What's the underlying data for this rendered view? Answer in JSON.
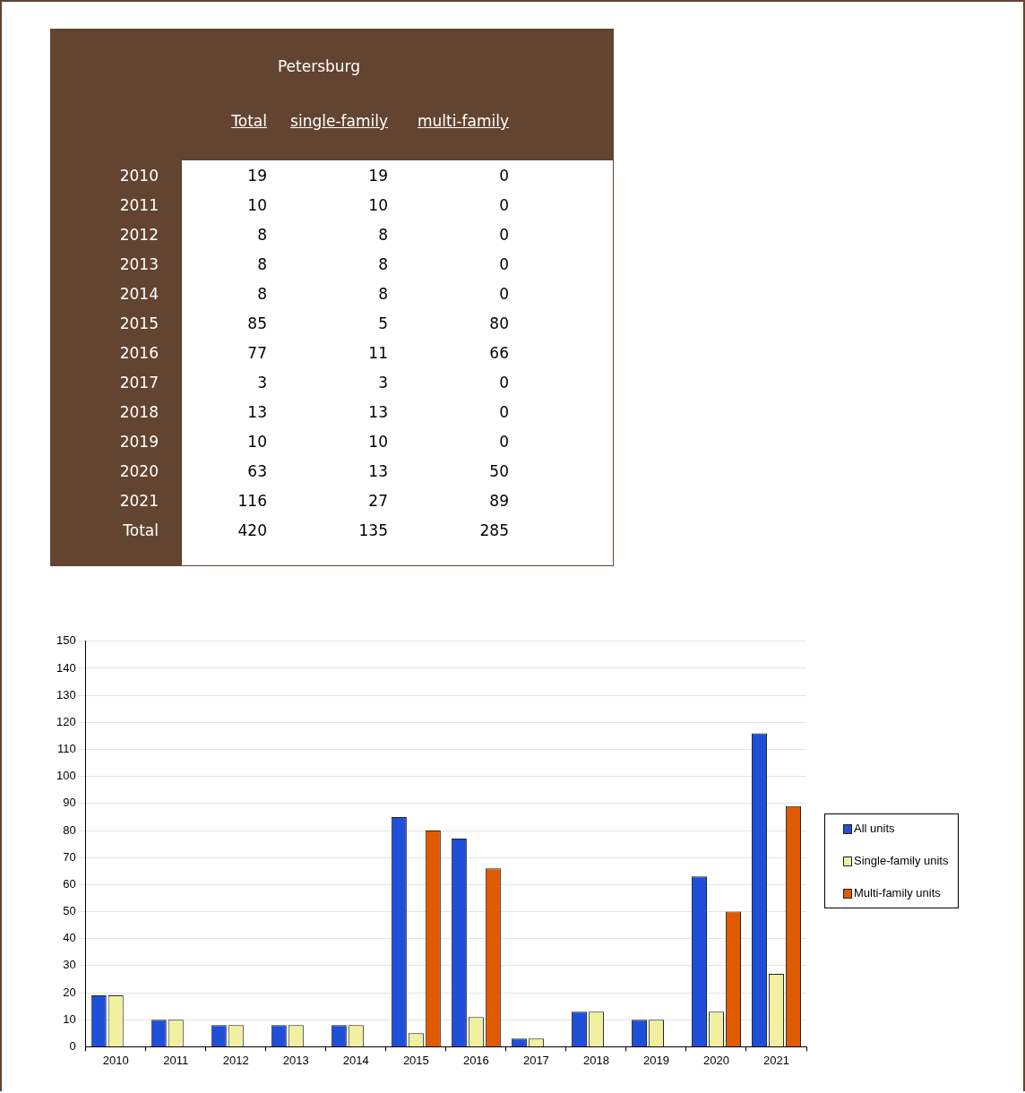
{
  "chart_data": [
    {
      "type": "heatmap",
      "title": "Petersburg",
      "categories": [
        "Total",
        "single-family",
        "multi-family"
      ],
      "y_categories": [
        "2010",
        "2011",
        "2012",
        "2013",
        "2014",
        "2015",
        "2016",
        "2017",
        "2018",
        "2019",
        "2020",
        "2021",
        "Total"
      ],
      "cells": [
        [
          19,
          19,
          0
        ],
        [
          10,
          10,
          0
        ],
        [
          8,
          8,
          0
        ],
        [
          8,
          8,
          0
        ],
        [
          8,
          8,
          0
        ],
        [
          85,
          5,
          80
        ],
        [
          77,
          11,
          66
        ],
        [
          3,
          3,
          0
        ],
        [
          13,
          13,
          0
        ],
        [
          10,
          10,
          0
        ],
        [
          63,
          13,
          50
        ],
        [
          116,
          27,
          89
        ],
        [
          420,
          135,
          285
        ]
      ],
      "data_labels": true
    },
    {
      "type": "bar",
      "categories": [
        "2010",
        "2011",
        "2012",
        "2013",
        "2014",
        "2015",
        "2016",
        "2017",
        "2018",
        "2019",
        "2020",
        "2021"
      ],
      "series": [
        {
          "name": "All units",
          "color": "#1f4fd8",
          "values": [
            19,
            10,
            8,
            8,
            8,
            85,
            77,
            3,
            13,
            10,
            63,
            116
          ]
        },
        {
          "name": "Single-family units",
          "color": "#f0f0a0",
          "values": [
            19,
            10,
            8,
            8,
            8,
            5,
            11,
            3,
            13,
            10,
            13,
            27
          ]
        },
        {
          "name": "Multi-family units",
          "color": "#e05a00",
          "values": [
            0,
            0,
            0,
            0,
            0,
            80,
            66,
            0,
            0,
            0,
            50,
            89
          ]
        }
      ],
      "ylim": [
        0,
        150
      ],
      "yticks": [
        0,
        10,
        20,
        30,
        40,
        50,
        60,
        70,
        80,
        90,
        100,
        110,
        120,
        130,
        140,
        150
      ],
      "grid": "y",
      "legend": "right"
    }
  ]
}
